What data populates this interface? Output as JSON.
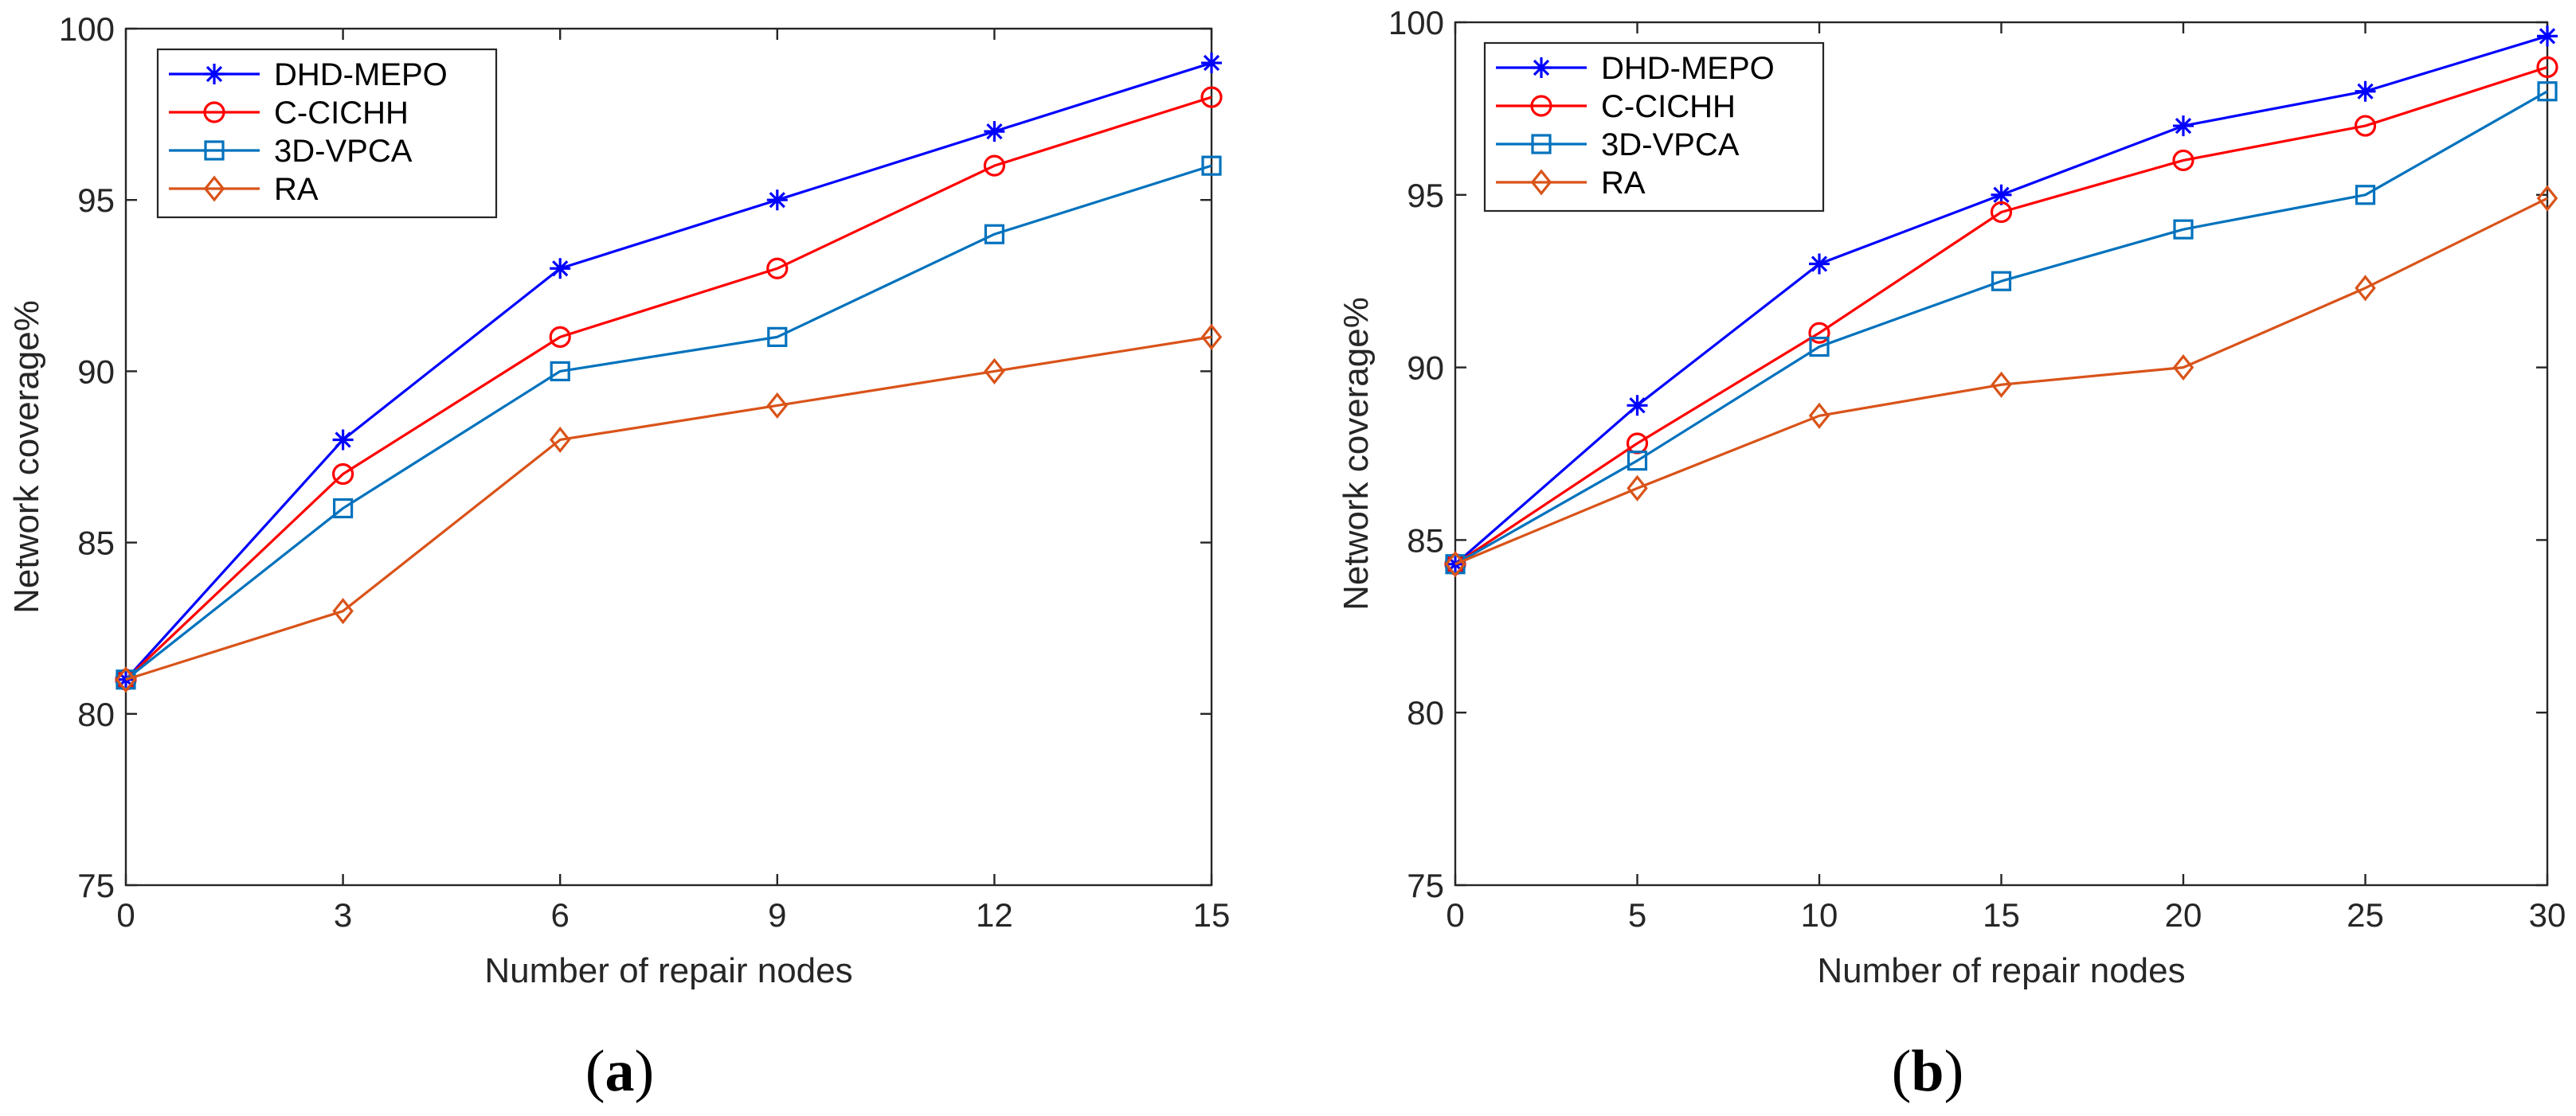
{
  "chart_data": [
    {
      "type": "line",
      "panel_label": "a",
      "xlabel": "Number of repair nodes",
      "ylabel": "Network coverage%",
      "xlim": [
        0,
        15
      ],
      "ylim": [
        75,
        100
      ],
      "xticks": [
        0,
        3,
        6,
        9,
        12,
        15
      ],
      "yticks": [
        75,
        80,
        85,
        90,
        95,
        100
      ],
      "x": [
        0,
        3,
        6,
        9,
        12,
        15
      ],
      "grid": false,
      "legend_position": "top-left",
      "series": [
        {
          "name": "DHD-MEPO",
          "color": "#0000ff",
          "marker": "asterisk",
          "values": [
            81,
            88,
            93,
            95,
            97,
            99
          ]
        },
        {
          "name": "C-CICHH",
          "color": "#ff0000",
          "marker": "circle",
          "values": [
            81,
            87,
            91,
            93,
            96,
            98
          ]
        },
        {
          "name": "3D-VPCA",
          "color": "#0072bd",
          "marker": "square",
          "values": [
            81,
            86,
            90,
            91,
            94,
            96
          ]
        },
        {
          "name": "RA",
          "color": "#d95319",
          "marker": "diamond",
          "values": [
            81,
            83,
            88,
            89,
            90,
            91
          ]
        }
      ]
    },
    {
      "type": "line",
      "panel_label": "b",
      "xlabel": "Number of repair nodes",
      "ylabel": "Network coverage%",
      "xlim": [
        0,
        30
      ],
      "ylim": [
        75,
        100
      ],
      "xticks": [
        0,
        5,
        10,
        15,
        20,
        25,
        30
      ],
      "yticks": [
        75,
        80,
        85,
        90,
        95,
        100
      ],
      "x": [
        0,
        5,
        10,
        15,
        20,
        25,
        30
      ],
      "grid": false,
      "legend_position": "top-left",
      "series": [
        {
          "name": "DHD-MEPO",
          "color": "#0000ff",
          "marker": "asterisk",
          "values": [
            84.3,
            88.9,
            93,
            95,
            97,
            98,
            99.6
          ]
        },
        {
          "name": "C-CICHH",
          "color": "#ff0000",
          "marker": "circle",
          "values": [
            84.3,
            87.8,
            91,
            94.5,
            96,
            97,
            98.7
          ]
        },
        {
          "name": "3D-VPCA",
          "color": "#0072bd",
          "marker": "square",
          "values": [
            84.3,
            87.3,
            90.6,
            92.5,
            94,
            95,
            98
          ]
        },
        {
          "name": "RA",
          "color": "#d95319",
          "marker": "diamond",
          "values": [
            84.3,
            86.5,
            88.6,
            89.5,
            90,
            92.3,
            94.9
          ]
        }
      ]
    }
  ]
}
